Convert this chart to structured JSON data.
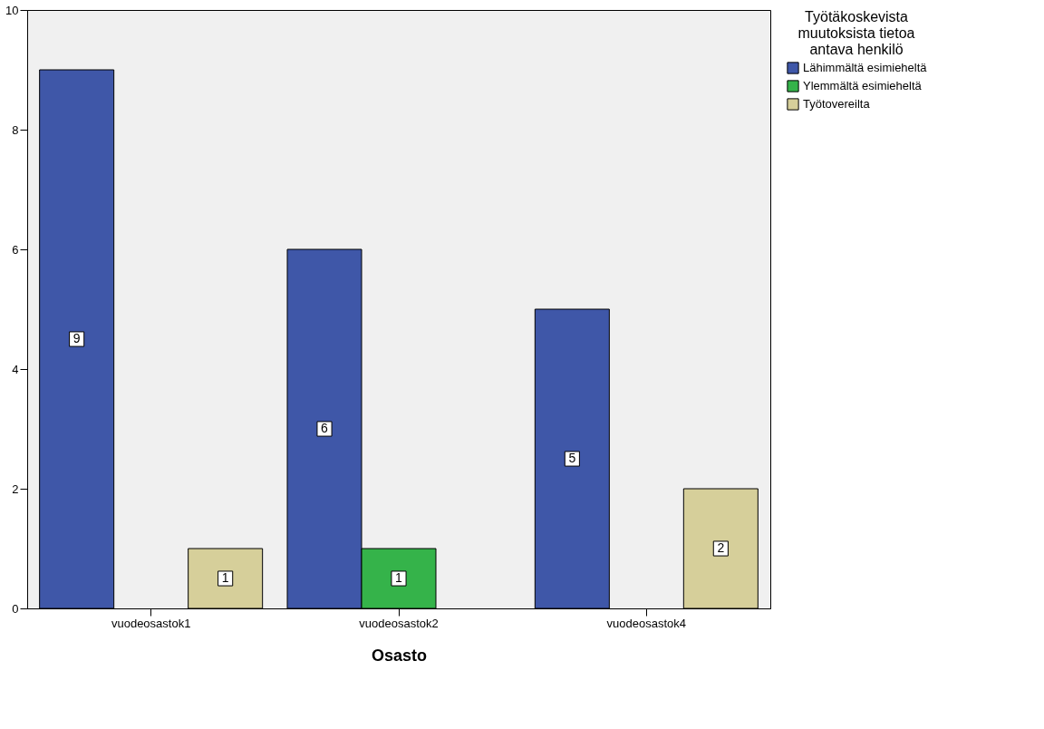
{
  "chart_data": {
    "type": "bar",
    "xlabel": "Osasto",
    "legend_title": "Työtäkoskevista muutoksista tietoa antava henkilö",
    "categories": [
      "vuodeosastok1",
      "vuodeosastok2",
      "vuodeosastok4"
    ],
    "series": [
      {
        "name": "Lähimmältä esimieheltä",
        "color": "#3f57a8",
        "values": [
          9,
          6,
          5
        ]
      },
      {
        "name": "Ylemmältä esimieheltä",
        "color": "#35b34a",
        "values": [
          null,
          1,
          null
        ]
      },
      {
        "name": "Työtovereilta",
        "color": "#d6cf9a",
        "values": [
          1,
          null,
          2
        ]
      }
    ],
    "ylim": [
      0,
      10
    ],
    "yticks": [
      0,
      2,
      4,
      6,
      8,
      10
    ],
    "grid": false,
    "legend": "top right",
    "data_labels": true
  }
}
